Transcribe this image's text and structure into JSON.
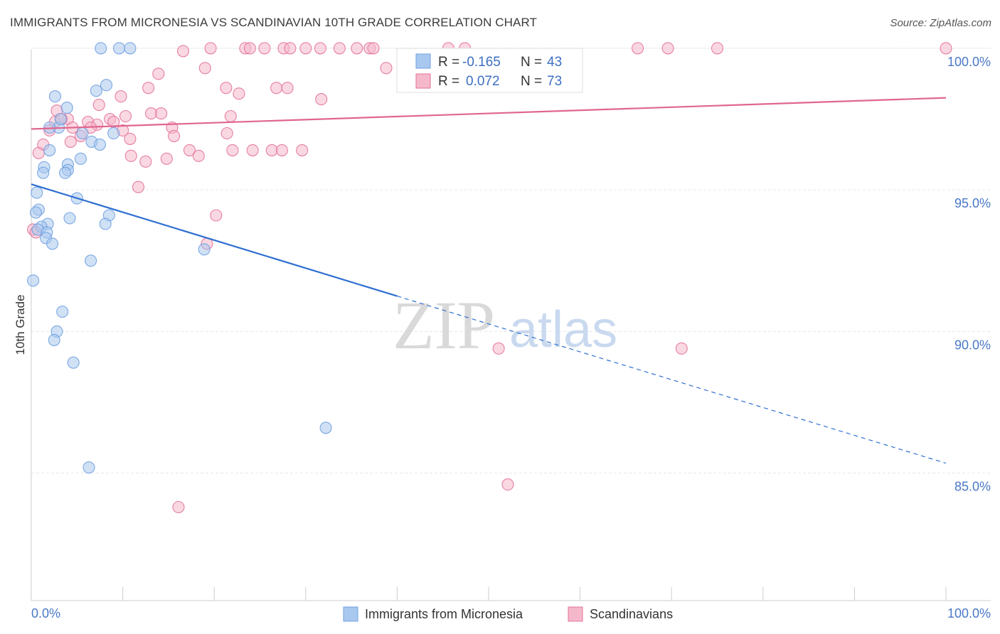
{
  "header": {
    "title": "IMMIGRANTS FROM MICRONESIA VS SCANDINAVIAN 10TH GRADE CORRELATION CHART",
    "source": "Source: ZipAtlas.com"
  },
  "watermark": {
    "zip": "ZIP",
    "atlas": "atlas"
  },
  "stats_box": {
    "rows": [
      {
        "r_label": "R =",
        "r_value": "-0.165",
        "n_label": "N =",
        "n_value": "43",
        "color": "#a9c8ef"
      },
      {
        "r_label": "R =",
        "r_value": "0.072",
        "n_label": "N =",
        "n_value": "73",
        "color": "#f5b8cb"
      }
    ]
  },
  "legend": {
    "items": [
      {
        "label": "Immigrants from Micronesia",
        "color": "#a9c8ef"
      },
      {
        "label": "Scandinavians",
        "color": "#f5b8cb"
      }
    ]
  },
  "chart_data": {
    "type": "scatter",
    "title": "IMMIGRANTS FROM MICRONESIA VS SCANDINAVIAN 10TH GRADE CORRELATION CHART",
    "xlabel": "",
    "ylabel": "10th Grade",
    "xlim": [
      0,
      100
    ],
    "ylim": [
      80.5,
      100.7
    ],
    "x_tick_labels": [
      "0.0%",
      "100.0%"
    ],
    "y_ticks": [
      85,
      90,
      95,
      100
    ],
    "y_tick_labels": [
      "85.0%",
      "90.0%",
      "95.0%",
      "100.0%"
    ],
    "grid": true,
    "legend_position": "bottom",
    "series": [
      {
        "name": "Immigrants from Micronesia",
        "color": "#6fa0e0",
        "fill": "#a9c8ef",
        "trend": {
          "x": [
            0,
            40,
            100
          ],
          "y": [
            95.2,
            91.25,
            85.35
          ],
          "solid_until": 40
        },
        "points": [
          [
            7.6,
            100
          ],
          [
            9.6,
            100
          ],
          [
            10.8,
            100
          ],
          [
            8.2,
            98.7
          ],
          [
            2.6,
            98.3
          ],
          [
            7.1,
            98.5
          ],
          [
            3.9,
            97.9
          ],
          [
            3.0,
            97.2
          ],
          [
            2.0,
            97.2
          ],
          [
            3.2,
            97.5
          ],
          [
            5.6,
            97.0
          ],
          [
            9.0,
            97.0
          ],
          [
            6.6,
            96.7
          ],
          [
            7.5,
            96.6
          ],
          [
            2.0,
            96.4
          ],
          [
            5.4,
            96.1
          ],
          [
            4.0,
            95.9
          ],
          [
            1.4,
            95.8
          ],
          [
            4.0,
            95.7
          ],
          [
            1.3,
            95.6
          ],
          [
            3.7,
            95.6
          ],
          [
            0.6,
            94.9
          ],
          [
            5.0,
            94.7
          ],
          [
            0.8,
            94.3
          ],
          [
            0.5,
            94.2
          ],
          [
            4.2,
            94.0
          ],
          [
            8.5,
            94.1
          ],
          [
            8.1,
            93.8
          ],
          [
            1.8,
            93.8
          ],
          [
            1.1,
            93.7
          ],
          [
            0.7,
            93.6
          ],
          [
            1.7,
            93.5
          ],
          [
            1.6,
            93.3
          ],
          [
            2.3,
            93.1
          ],
          [
            18.9,
            92.9
          ],
          [
            6.5,
            92.5
          ],
          [
            0.2,
            91.8
          ],
          [
            3.4,
            90.7
          ],
          [
            2.8,
            90.0
          ],
          [
            2.5,
            89.7
          ],
          [
            4.6,
            88.9
          ],
          [
            32.2,
            86.6
          ],
          [
            6.3,
            85.2
          ]
        ]
      },
      {
        "name": "Scandinavians",
        "color": "#e3729a",
        "fill": "#f5b8cb",
        "trend": {
          "x": [
            0,
            100
          ],
          "y": [
            97.15,
            98.25
          ]
        },
        "points": [
          [
            16.6,
            99.9
          ],
          [
            19.6,
            100
          ],
          [
            23.4,
            100
          ],
          [
            23.9,
            100
          ],
          [
            25.5,
            100
          ],
          [
            27.6,
            100
          ],
          [
            28.3,
            100
          ],
          [
            30.0,
            100
          ],
          [
            31.6,
            100
          ],
          [
            33.7,
            100
          ],
          [
            35.6,
            100
          ],
          [
            37.0,
            100
          ],
          [
            37.4,
            100
          ],
          [
            45.6,
            100
          ],
          [
            47.4,
            100
          ],
          [
            66.3,
            100
          ],
          [
            69.6,
            100
          ],
          [
            75.0,
            100
          ],
          [
            100.0,
            100
          ],
          [
            19.0,
            99.3
          ],
          [
            38.8,
            99.3
          ],
          [
            13.9,
            99.1
          ],
          [
            21.3,
            98.6
          ],
          [
            12.8,
            98.6
          ],
          [
            26.8,
            98.6
          ],
          [
            28.0,
            98.6
          ],
          [
            22.7,
            98.4
          ],
          [
            9.8,
            98.3
          ],
          [
            31.7,
            98.2
          ],
          [
            7.4,
            98.0
          ],
          [
            2.8,
            97.8
          ],
          [
            13.1,
            97.7
          ],
          [
            14.2,
            97.7
          ],
          [
            21.8,
            97.6
          ],
          [
            10.3,
            97.6
          ],
          [
            4.0,
            97.5
          ],
          [
            8.6,
            97.5
          ],
          [
            6.2,
            97.4
          ],
          [
            2.6,
            97.4
          ],
          [
            9.0,
            97.4
          ],
          [
            7.2,
            97.3
          ],
          [
            4.5,
            97.2
          ],
          [
            6.5,
            97.2
          ],
          [
            15.4,
            97.2
          ],
          [
            2.0,
            97.1
          ],
          [
            5.4,
            96.9
          ],
          [
            15.6,
            96.9
          ],
          [
            21.4,
            97.0
          ],
          [
            10.8,
            96.8
          ],
          [
            4.3,
            96.7
          ],
          [
            1.3,
            96.6
          ],
          [
            17.3,
            96.4
          ],
          [
            22.0,
            96.4
          ],
          [
            26.3,
            96.4
          ],
          [
            27.4,
            96.4
          ],
          [
            0.8,
            96.3
          ],
          [
            10.9,
            96.2
          ],
          [
            18.3,
            96.2
          ],
          [
            14.8,
            96.1
          ],
          [
            12.5,
            96.0
          ],
          [
            11.7,
            95.1
          ],
          [
            20.2,
            94.1
          ],
          [
            0.2,
            93.6
          ],
          [
            19.2,
            93.1
          ],
          [
            0.5,
            93.5
          ],
          [
            51.1,
            89.4
          ],
          [
            71.1,
            89.4
          ],
          [
            52.1,
            84.6
          ],
          [
            16.1,
            83.8
          ],
          [
            10.0,
            97.1
          ],
          [
            3.3,
            97.5
          ],
          [
            24.2,
            96.4
          ],
          [
            29.6,
            96.4
          ]
        ]
      }
    ]
  }
}
